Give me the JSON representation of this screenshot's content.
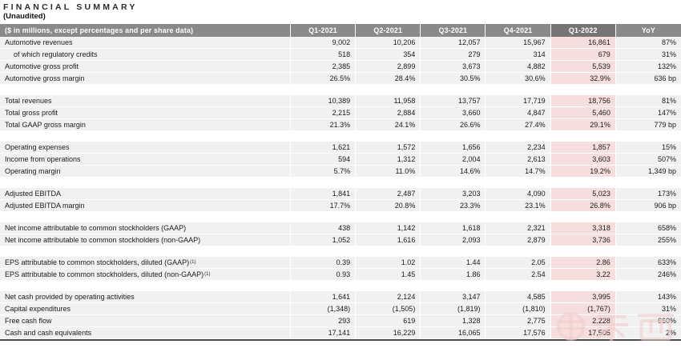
{
  "title": "FINANCIAL SUMMARY",
  "subtitle": "(Unaudited)",
  "watermark_text": "车东西",
  "colors": {
    "header_gray": "#8a8a8a",
    "header_dark": "#757575",
    "row_gray": "#f1f1f1",
    "highlight_pink": "#f5dedd",
    "bottom_border": "#4a4a4a",
    "watermark_pink": "#f0cfcd"
  },
  "table": {
    "header": [
      "($ in millions, except percentages and per share data)",
      "Q1-2021",
      "Q2-2021",
      "Q3-2021",
      "Q4-2021",
      "Q1-2022",
      "YoY"
    ],
    "highlight_column": "Q1-2022",
    "groups": [
      {
        "rows": [
          {
            "label": "Automotive revenues",
            "indent": false,
            "sup": "",
            "values": [
              "9,002",
              "10,206",
              "12,057",
              "15,967",
              "16,861",
              "87%"
            ]
          },
          {
            "label": "of which regulatory credits",
            "indent": true,
            "sup": "",
            "values": [
              "518",
              "354",
              "279",
              "314",
              "679",
              "31%"
            ]
          },
          {
            "label": "Automotive gross profit",
            "indent": false,
            "sup": "",
            "values": [
              "2,385",
              "2,899",
              "3,673",
              "4,882",
              "5,539",
              "132%"
            ]
          },
          {
            "label": "Automotive gross margin",
            "indent": false,
            "sup": "",
            "values": [
              "26.5%",
              "28.4%",
              "30.5%",
              "30.6%",
              "32.9%",
              "636 bp"
            ]
          }
        ]
      },
      {
        "rows": [
          {
            "label": "Total revenues",
            "indent": false,
            "sup": "",
            "values": [
              "10,389",
              "11,958",
              "13,757",
              "17,719",
              "18,756",
              "81%"
            ]
          },
          {
            "label": "Total gross profit",
            "indent": false,
            "sup": "",
            "values": [
              "2,215",
              "2,884",
              "3,660",
              "4,847",
              "5,460",
              "147%"
            ]
          },
          {
            "label": "Total GAAP gross margin",
            "indent": false,
            "sup": "",
            "values": [
              "21.3%",
              "24.1%",
              "26.6%",
              "27.4%",
              "29.1%",
              "779 bp"
            ]
          }
        ]
      },
      {
        "rows": [
          {
            "label": "Operating expenses",
            "indent": false,
            "sup": "",
            "values": [
              "1,621",
              "1,572",
              "1,656",
              "2,234",
              "1,857",
              "15%"
            ]
          },
          {
            "label": "Income from operations",
            "indent": false,
            "sup": "",
            "values": [
              "594",
              "1,312",
              "2,004",
              "2,613",
              "3,603",
              "507%"
            ]
          },
          {
            "label": "Operating margin",
            "indent": false,
            "sup": "",
            "values": [
              "5.7%",
              "11.0%",
              "14.6%",
              "14.7%",
              "19.2%",
              "1,349 bp"
            ]
          }
        ]
      },
      {
        "rows": [
          {
            "label": "Adjusted EBITDA",
            "indent": false,
            "sup": "",
            "values": [
              "1,841",
              "2,487",
              "3,203",
              "4,090",
              "5,023",
              "173%"
            ]
          },
          {
            "label": "Adjusted EBITDA margin",
            "indent": false,
            "sup": "",
            "values": [
              "17.7%",
              "20.8%",
              "23.3%",
              "23.1%",
              "26.8%",
              "906 bp"
            ]
          }
        ]
      },
      {
        "rows": [
          {
            "label": "Net income attributable to common stockholders (GAAP)",
            "indent": false,
            "sup": "",
            "values": [
              "438",
              "1,142",
              "1,618",
              "2,321",
              "3,318",
              "658%"
            ]
          },
          {
            "label": "Net income attributable to common stockholders (non-GAAP)",
            "indent": false,
            "sup": "",
            "values": [
              "1,052",
              "1,616",
              "2,093",
              "2,879",
              "3,736",
              "255%"
            ]
          }
        ]
      },
      {
        "rows": [
          {
            "label": "EPS attributable to common stockholders, diluted (GAAP)",
            "indent": false,
            "sup": "(1)",
            "values": [
              "0.39",
              "1.02",
              "1.44",
              "2.05",
              "2.86",
              "633%"
            ]
          },
          {
            "label": "EPS attributable to common stockholders, diluted (non-GAAP)",
            "indent": false,
            "sup": "(1)",
            "values": [
              "0.93",
              "1.45",
              "1.86",
              "2.54",
              "3.22",
              "246%"
            ]
          }
        ]
      },
      {
        "rows": [
          {
            "label": "Net cash provided by operating activities",
            "indent": false,
            "sup": "",
            "values": [
              "1,641",
              "2,124",
              "3,147",
              "4,585",
              "3,995",
              "143%"
            ]
          },
          {
            "label": "Capital expenditures",
            "indent": false,
            "sup": "",
            "values": [
              "(1,348)",
              "(1,505)",
              "(1,819)",
              "(1,810)",
              "(1,767)",
              "31%"
            ]
          },
          {
            "label": "Free cash flow",
            "indent": false,
            "sup": "",
            "values": [
              "293",
              "619",
              "1,328",
              "2,775",
              "2,228",
              "660%"
            ]
          },
          {
            "label": "Cash and cash equivalents",
            "indent": false,
            "sup": "",
            "values": [
              "17,141",
              "16,229",
              "16,065",
              "17,576",
              "17,505",
              "2%"
            ]
          }
        ]
      }
    ]
  }
}
